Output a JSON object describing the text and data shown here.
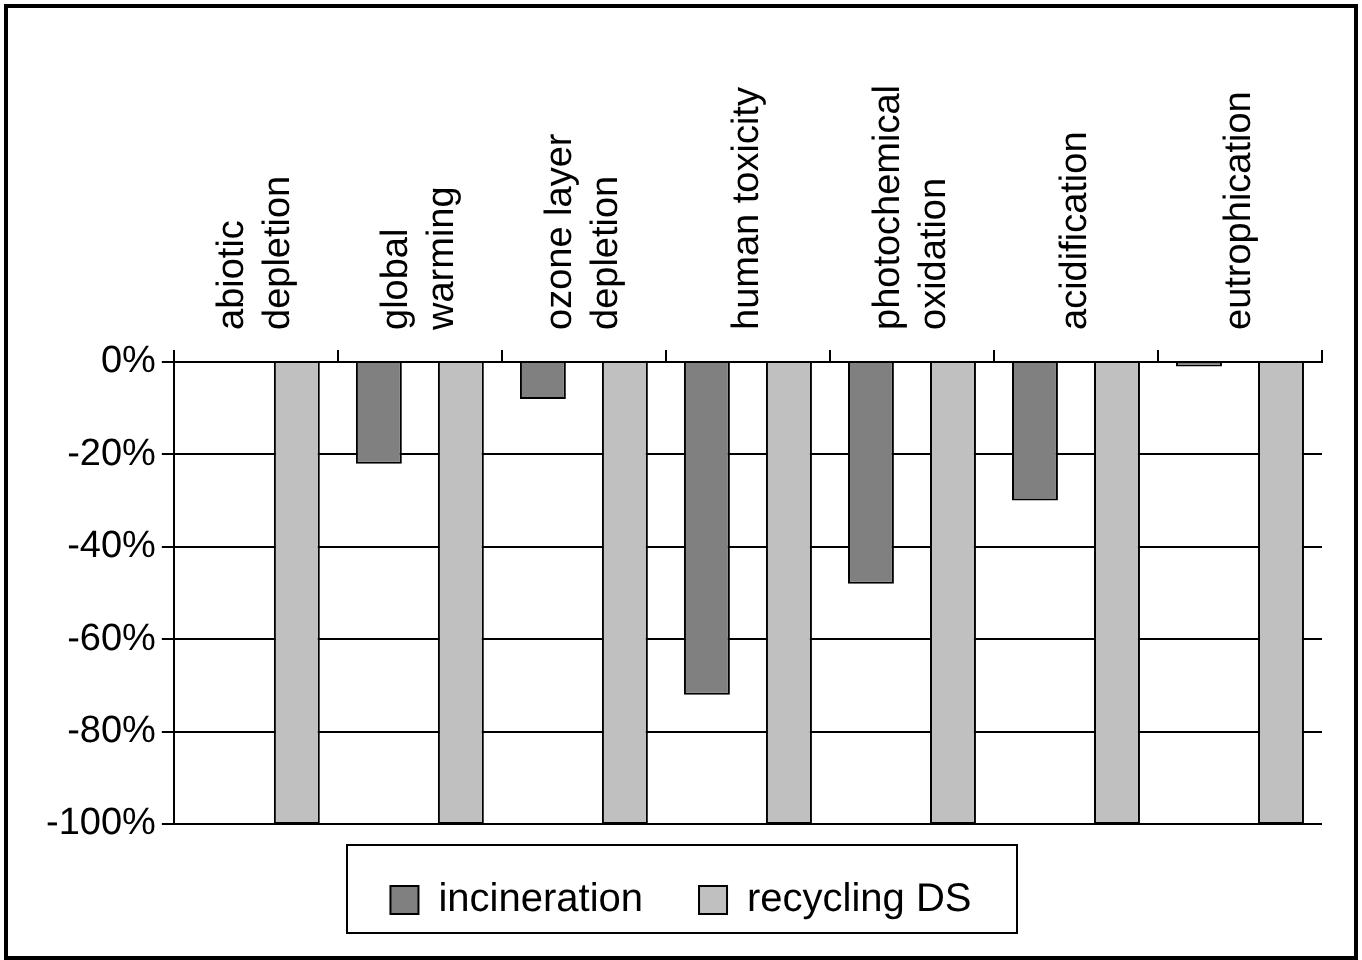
{
  "chart_data": {
    "type": "bar",
    "categories": [
      "abiotic\ndepletion",
      "global\nwarming",
      "ozone layer\ndepletion",
      "human toxicity",
      "photochemical\noxidation",
      "acidification",
      "eutrophication"
    ],
    "series": [
      {
        "name": "incineration",
        "color": "#808080",
        "values": [
          0,
          -22,
          -8,
          -72,
          -48,
          -30,
          -1
        ]
      },
      {
        "name": "recycling DS",
        "color": "#c0c0c0",
        "values": [
          -100,
          -100,
          -100,
          -100,
          -100,
          -100,
          -100
        ]
      }
    ],
    "ylim": [
      -100,
      0
    ],
    "yticks": [
      {
        "value": 0,
        "label": "0%"
      },
      {
        "value": -20,
        "label": "-20%"
      },
      {
        "value": -40,
        "label": "-40%"
      },
      {
        "value": -60,
        "label": "-60%"
      },
      {
        "value": -80,
        "label": "-80%"
      },
      {
        "value": -100,
        "label": "-100%"
      }
    ],
    "grid": "y",
    "legend": "bottom"
  }
}
